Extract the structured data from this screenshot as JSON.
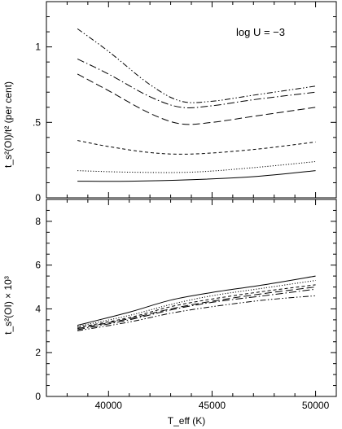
{
  "chart_data": [
    {
      "type": "line",
      "annotation": "log U = −3",
      "ylabel": "t_s²(OI)/t² (per cent)",
      "xlim": [
        37000,
        51000
      ],
      "ylim": [
        0,
        1.3
      ],
      "yticks": [
        0,
        0.5,
        1
      ],
      "ytick_labels": [
        "0",
        ".5",
        "1"
      ],
      "grid": false,
      "series": [
        {
          "style": "solid",
          "x": [
            38500,
            41000,
            44000,
            47000,
            50000
          ],
          "values": [
            0.11,
            0.11,
            0.12,
            0.14,
            0.18
          ]
        },
        {
          "style": "dotted",
          "x": [
            38500,
            41000,
            44000,
            47000,
            50000
          ],
          "values": [
            0.18,
            0.17,
            0.17,
            0.2,
            0.24
          ]
        },
        {
          "style": "dashed",
          "x": [
            38500,
            40000,
            42000,
            44000,
            47000,
            50000
          ],
          "values": [
            0.38,
            0.34,
            0.3,
            0.29,
            0.32,
            0.37
          ]
        },
        {
          "style": "long-dashed",
          "x": [
            38500,
            40000,
            42000,
            43500,
            45000,
            47000,
            50000
          ],
          "values": [
            0.82,
            0.71,
            0.56,
            0.49,
            0.5,
            0.54,
            0.6
          ]
        },
        {
          "style": "dash-dot",
          "x": [
            38500,
            40000,
            42000,
            43500,
            45000,
            47000,
            50000
          ],
          "values": [
            0.92,
            0.82,
            0.67,
            0.6,
            0.61,
            0.65,
            0.7
          ]
        },
        {
          "style": "dash-dot-dot",
          "x": [
            38500,
            40000,
            42000,
            43500,
            45000,
            47000,
            50000
          ],
          "values": [
            1.12,
            0.97,
            0.75,
            0.64,
            0.64,
            0.68,
            0.74
          ]
        }
      ]
    },
    {
      "type": "line",
      "xlabel": "T_eff (K)",
      "ylabel": "t_s²(OI) × 10³",
      "xlim": [
        37000,
        51000
      ],
      "ylim": [
        0,
        9
      ],
      "xticks": [
        40000,
        45000,
        50000
      ],
      "xtick_labels": [
        "40000",
        "45000",
        "50000"
      ],
      "yticks": [
        0,
        2,
        4,
        6,
        8
      ],
      "ytick_labels": [
        "0",
        "2",
        "4",
        "6",
        "8"
      ],
      "grid": false,
      "series": [
        {
          "style": "solid",
          "x": [
            38500,
            41000,
            43000,
            45000,
            47500,
            50000
          ],
          "values": [
            3.25,
            3.85,
            4.4,
            4.75,
            5.1,
            5.5
          ]
        },
        {
          "style": "dotted",
          "x": [
            38500,
            41000,
            43000,
            45000,
            47500,
            50000
          ],
          "values": [
            3.2,
            3.7,
            4.2,
            4.6,
            4.95,
            5.3
          ]
        },
        {
          "style": "dashed",
          "x": [
            38500,
            41000,
            43000,
            45000,
            47500,
            50000
          ],
          "values": [
            3.15,
            3.6,
            4.1,
            4.45,
            4.8,
            5.1
          ]
        },
        {
          "style": "long-dashed",
          "x": [
            38500,
            41000,
            43000,
            45000,
            47500,
            50000
          ],
          "values": [
            3.1,
            3.55,
            4.0,
            4.35,
            4.7,
            5.0
          ]
        },
        {
          "style": "dash-dot",
          "x": [
            38500,
            41000,
            43000,
            45000,
            47500,
            50000
          ],
          "values": [
            3.05,
            3.5,
            3.95,
            4.3,
            4.6,
            4.9
          ]
        },
        {
          "style": "dash-dot-dot",
          "x": [
            38500,
            41000,
            43000,
            45000,
            47500,
            50000
          ],
          "values": [
            3.0,
            3.4,
            3.8,
            4.1,
            4.4,
            4.6
          ]
        }
      ]
    }
  ]
}
